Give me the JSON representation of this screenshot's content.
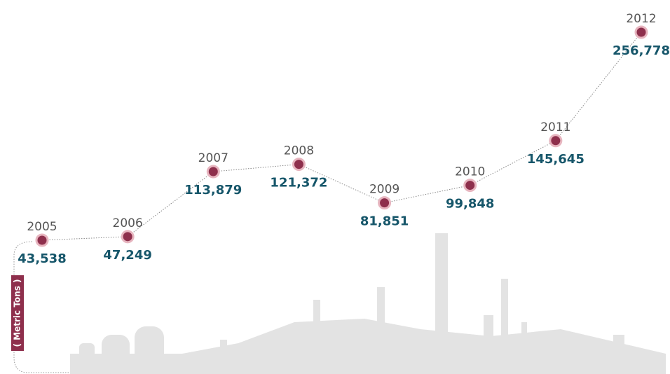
{
  "chart_data": {
    "type": "line",
    "categories": [
      "2005",
      "2006",
      "2007",
      "2008",
      "2009",
      "2010",
      "2011",
      "2012"
    ],
    "values": [
      43538,
      47249,
      113879,
      121372,
      81851,
      99848,
      145645,
      256778
    ],
    "value_labels": [
      "43,538",
      "47,249",
      "113,879",
      "121,372",
      "81,851",
      "99,848",
      "145,645",
      "256,778"
    ],
    "y_label": "( Metric Tons )",
    "color": "#8e2f4c"
  }
}
